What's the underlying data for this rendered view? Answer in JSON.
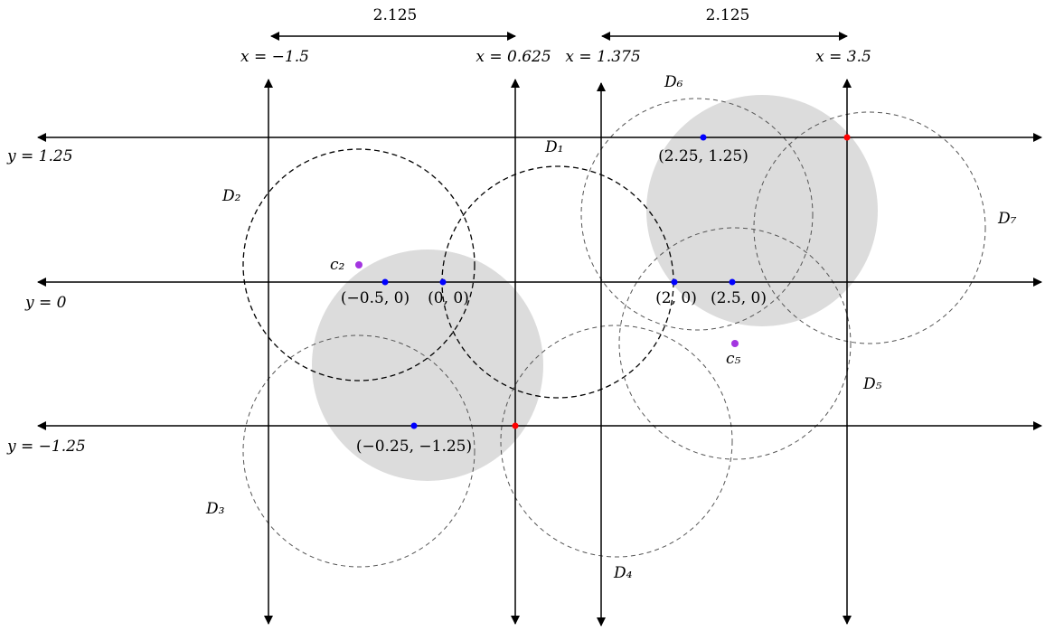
{
  "labels": {
    "top_left_width": "2.125",
    "top_right_width": "2.125",
    "x_minus_1_5": "x = −1.5",
    "x_0_625": "x = 0.625",
    "x_1_375": "x = 1.375",
    "x_3_5": "x = 3.5",
    "y_1_25": "y = 1.25",
    "y_0": "y = 0",
    "y_minus_1_25": "y = −1.25",
    "D1": "D₁",
    "D2": "D₂",
    "D3": "D₃",
    "D4": "D₄",
    "D5": "D₅",
    "D6": "D₆",
    "D7": "D₇",
    "c2": "c₂",
    "c5": "c₅",
    "pt_m05_0": "(−0.5, 0)",
    "pt_0_0": "(0, 0)",
    "pt_2_0": "(2, 0)",
    "pt_25_0": "(2.5, 0)",
    "pt_225_125": "(2.25, 1.25)",
    "pt_m025_m125": "(−0.25, −1.25)"
  },
  "colors": {
    "shade": "#dcdcdc",
    "blue_point": "#0000ff",
    "red_point": "#ff0000",
    "purple_point": "#a335e0"
  }
}
